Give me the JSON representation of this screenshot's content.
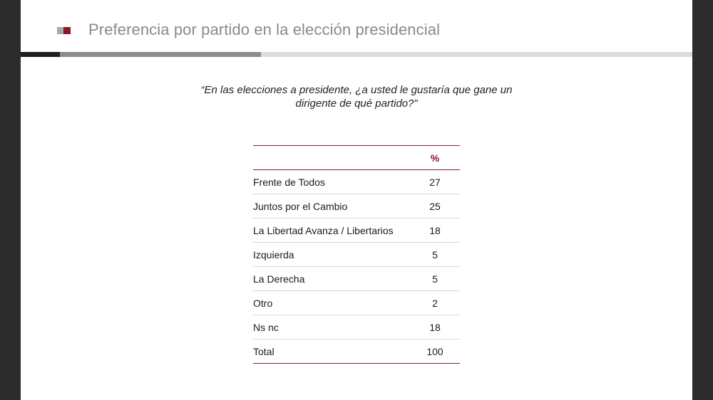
{
  "slide": {
    "title": "Preferencia por partido en la elección presidencial",
    "question_line1": "“En las elecciones a presidente, ¿a usted le gustaría que gane un",
    "question_line2": "dirigente de qué partido?”"
  },
  "table": {
    "header_label": "",
    "header_value": "%",
    "rows": [
      {
        "label": "Frente de Todos",
        "value": "27"
      },
      {
        "label": "Juntos por el Cambio",
        "value": "25"
      },
      {
        "label": "La Libertad Avanza / Libertarios",
        "value": "18"
      },
      {
        "label": "Izquierda",
        "value": "5"
      },
      {
        "label": "La Derecha",
        "value": "5"
      },
      {
        "label": "Otro",
        "value": "2"
      },
      {
        "label": "Ns nc",
        "value": "18"
      },
      {
        "label": "Total",
        "value": "100"
      }
    ]
  },
  "colors": {
    "accent": "#8b1a2b",
    "title_gray": "#8a8a8a",
    "background": "#ffffff",
    "frame": "#2b2b2b"
  }
}
